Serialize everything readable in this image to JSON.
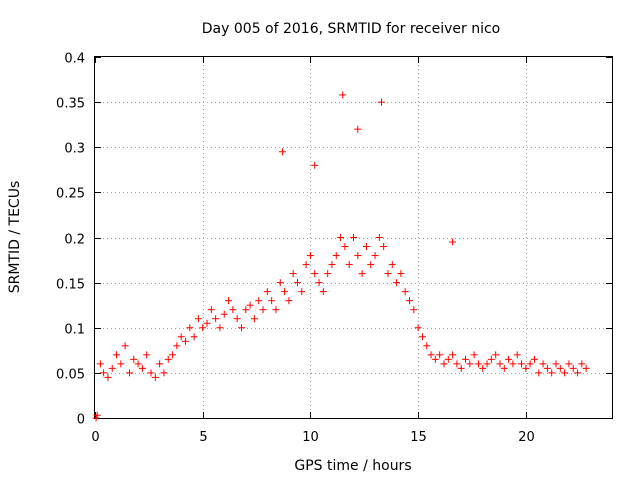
{
  "chart_data": {
    "type": "scatter",
    "title": "Day 005 of 2016, SRMTID for receiver nico",
    "xlabel": "GPS time / hours",
    "ylabel": "SRMTID / TECUs",
    "xlim": [
      0,
      24
    ],
    "ylim": [
      0,
      0.4
    ],
    "xticks": [
      "0",
      "5",
      "10",
      "15",
      "20"
    ],
    "yticks": [
      "0",
      "0.05",
      "0.1",
      "0.15",
      "0.2",
      "0.25",
      "0.3",
      "0.35",
      "0.4"
    ],
    "grid": true,
    "legend": "none",
    "marker": "+",
    "color": "#ff0000",
    "series": [
      {
        "x": [
          0.05,
          0.1,
          0.25,
          0.4,
          0.6,
          0.8,
          1.0,
          1.2,
          1.4,
          1.6,
          1.8,
          2.0,
          2.2,
          2.4,
          2.6,
          2.8,
          3.0,
          3.2,
          3.4,
          3.6,
          3.8,
          4.0,
          4.2,
          4.4,
          4.6,
          4.8,
          5.0,
          5.2,
          5.4,
          5.6,
          5.8,
          6.0,
          6.2,
          6.4,
          6.6,
          6.8,
          7.0,
          7.2,
          7.4,
          7.6,
          7.8,
          8.0,
          8.2,
          8.4,
          8.6,
          8.8,
          9.0,
          9.2,
          9.4,
          9.6,
          9.8,
          10.0,
          10.2,
          10.4,
          10.6,
          10.8,
          11.0,
          11.2,
          11.4,
          11.6,
          11.8,
          12.0,
          12.2,
          12.4,
          12.6,
          12.8,
          13.0,
          13.2,
          13.4,
          13.6,
          13.8,
          14.0,
          14.2,
          14.4,
          14.6,
          14.8,
          15.0,
          15.2,
          15.4,
          15.6,
          15.8,
          16.0,
          16.2,
          16.4,
          16.6,
          16.8,
          17.0,
          17.2,
          17.4,
          17.6,
          17.8,
          18.0,
          18.2,
          18.4,
          18.6,
          18.8,
          19.0,
          19.2,
          19.4,
          19.6,
          19.8,
          20.0,
          20.2,
          20.4,
          20.6,
          20.8,
          21.0,
          21.2,
          21.4,
          21.6,
          21.8,
          22.0,
          22.2,
          22.4,
          22.6,
          22.8
        ],
        "y": [
          0.0,
          0.003,
          0.06,
          0.05,
          0.045,
          0.055,
          0.07,
          0.06,
          0.08,
          0.05,
          0.065,
          0.06,
          0.055,
          0.07,
          0.05,
          0.045,
          0.06,
          0.05,
          0.065,
          0.07,
          0.08,
          0.09,
          0.085,
          0.1,
          0.09,
          0.11,
          0.1,
          0.105,
          0.12,
          0.11,
          0.1,
          0.115,
          0.13,
          0.12,
          0.11,
          0.1,
          0.12,
          0.125,
          0.11,
          0.13,
          0.12,
          0.14,
          0.13,
          0.12,
          0.15,
          0.14,
          0.13,
          0.16,
          0.15,
          0.14,
          0.17,
          0.18,
          0.16,
          0.15,
          0.14,
          0.16,
          0.17,
          0.18,
          0.2,
          0.19,
          0.17,
          0.2,
          0.18,
          0.16,
          0.19,
          0.17,
          0.18,
          0.2,
          0.19,
          0.16,
          0.17,
          0.15,
          0.16,
          0.14,
          0.13,
          0.12,
          0.1,
          0.09,
          0.08,
          0.07,
          0.065,
          0.07,
          0.06,
          0.065,
          0.07,
          0.06,
          0.055,
          0.065,
          0.06,
          0.07,
          0.06,
          0.055,
          0.06,
          0.065,
          0.07,
          0.06,
          0.055,
          0.065,
          0.06,
          0.07,
          0.06,
          0.055,
          0.06,
          0.065,
          0.05,
          0.06,
          0.055,
          0.05,
          0.06,
          0.055,
          0.05,
          0.06,
          0.055,
          0.05,
          0.06,
          0.055
        ]
      }
    ],
    "notable_peaks": [
      {
        "x": 8.7,
        "y": 0.295
      },
      {
        "x": 10.2,
        "y": 0.28
      },
      {
        "x": 11.5,
        "y": 0.358
      },
      {
        "x": 12.2,
        "y": 0.32
      },
      {
        "x": 13.3,
        "y": 0.35
      },
      {
        "x": 16.6,
        "y": 0.195
      }
    ]
  }
}
